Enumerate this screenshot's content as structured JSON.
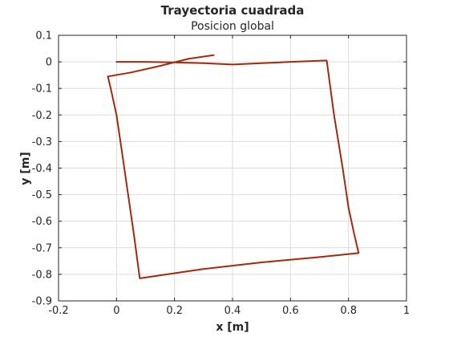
{
  "chart_data": {
    "type": "line",
    "title": "Trayectoria cuadrada",
    "subtitle": "Posicion global",
    "xlabel": "x [m]",
    "ylabel": "y [m]",
    "xlim": [
      -0.2,
      1
    ],
    "ylim": [
      -0.9,
      0.1
    ],
    "xticks": [
      -0.2,
      0,
      0.2,
      0.4,
      0.6,
      0.8,
      1
    ],
    "yticks": [
      0.1,
      0,
      -0.1,
      -0.2,
      -0.3,
      -0.4,
      -0.5,
      -0.6,
      -0.7,
      -0.8,
      -0.9
    ],
    "xtick_labels": [
      "-0.2",
      "0",
      "0.2",
      "0.4",
      "0.6",
      "0.8",
      "1"
    ],
    "ytick_labels": [
      "0.1",
      "0",
      "-0.1",
      "-0.2",
      "-0.3",
      "-0.4",
      "-0.5",
      "-0.6",
      "-0.7",
      "-0.8",
      "-0.9"
    ],
    "grid": true,
    "series": [
      {
        "color": "#a2290f",
        "x": [
          0.0,
          0.1,
          0.2,
          0.3,
          0.4,
          0.5,
          0.6,
          0.725,
          0.75,
          0.78,
          0.8,
          0.82,
          0.835,
          0.7,
          0.5,
          0.3,
          0.08,
          0.06,
          0.04,
          0.02,
          0.0,
          -0.02,
          -0.03,
          0.05,
          0.15,
          0.25,
          0.335
        ],
        "y": [
          0.0,
          0.0,
          -0.002,
          -0.005,
          -0.01,
          -0.005,
          0.0,
          0.005,
          -0.2,
          -0.4,
          -0.55,
          -0.65,
          -0.72,
          -0.735,
          -0.755,
          -0.78,
          -0.815,
          -0.65,
          -0.5,
          -0.35,
          -0.2,
          -0.1,
          -0.055,
          -0.04,
          -0.015,
          0.012,
          0.025
        ]
      }
    ],
    "style": {
      "axes_color": "#262626",
      "grid_color": "#dcdcdc",
      "background": "#ffffff"
    }
  }
}
